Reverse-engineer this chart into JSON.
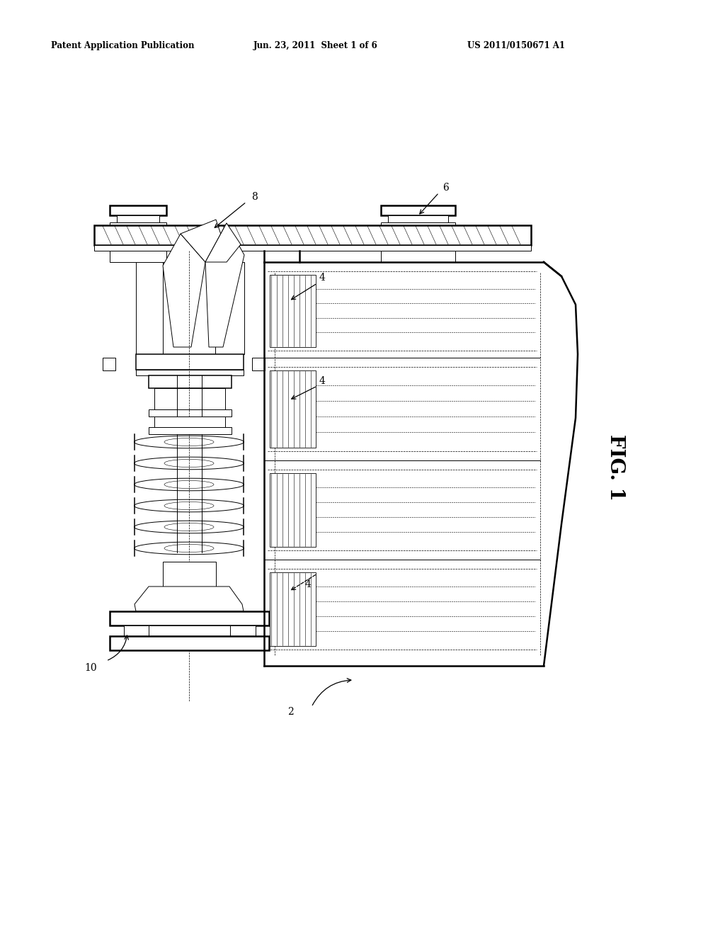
{
  "background_color": "#ffffff",
  "header_left": "Patent Application Publication",
  "header_center": "Jun. 23, 2011  Sheet 1 of 6",
  "header_right": "US 2011/0150671 A1",
  "fig_label": "FIG. 1",
  "label_2": "2",
  "label_4": "4",
  "label_6": "6",
  "label_8": "8",
  "label_10": "10"
}
